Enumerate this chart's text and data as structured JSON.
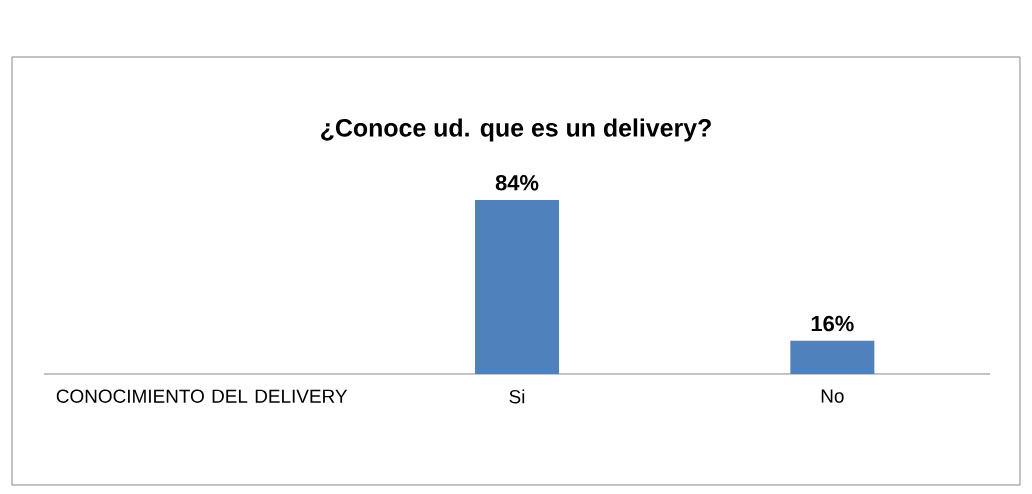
{
  "chart_data": {
    "type": "bar",
    "title": "¿Conoce ud. que es un delivery?",
    "categories": [
      "CONOCIMIENTO DEL DELIVERY",
      "Si",
      "No"
    ],
    "values": [
      null,
      84,
      16
    ],
    "value_labels": [
      null,
      "84%",
      "16%"
    ],
    "color": "#4f81bd"
  }
}
